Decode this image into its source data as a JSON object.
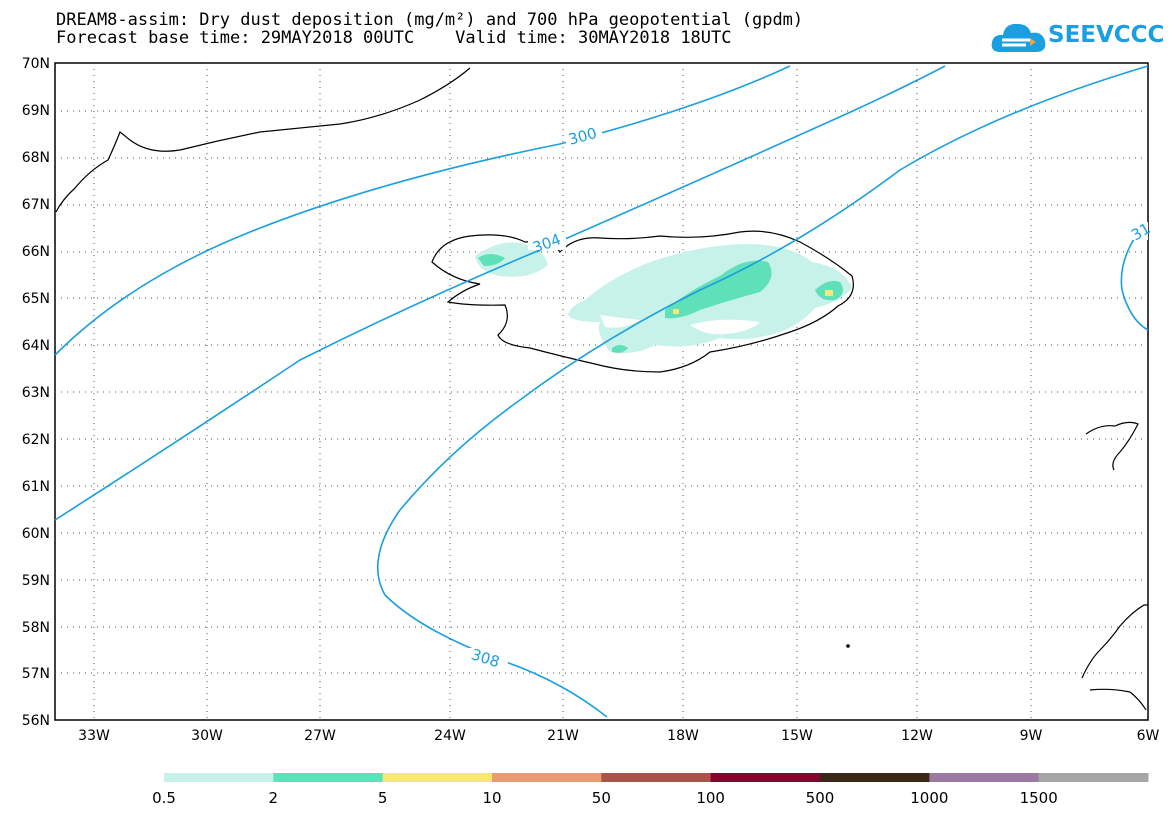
{
  "header": {
    "title_line1": "DREAM8-assim: Dry dust deposition (mg/m²) and 700 hPa geopotential (gpdm)",
    "title_line2": "Forecast base time: 29MAY2018 00UTC    Valid time: 30MAY2018 18UTC"
  },
  "logo": {
    "text": "SEEVCCC",
    "icon": "cloud-icon",
    "color": "#1a9fe0"
  },
  "map": {
    "lat_labels": [
      "70N",
      "69N",
      "68N",
      "67N",
      "66N",
      "65N",
      "64N",
      "63N",
      "62N",
      "61N",
      "60N",
      "59N",
      "58N",
      "57N",
      "56N"
    ],
    "lon_labels": [
      "33W",
      "30W",
      "27W",
      "24W",
      "21W",
      "18W",
      "15W",
      "12W",
      "9W",
      "6W"
    ],
    "contour_color": "#1a9fe0",
    "contour_labels": [
      {
        "text": "300"
      },
      {
        "text": "304"
      },
      {
        "text": "308"
      },
      {
        "text": "31"
      }
    ]
  },
  "colorbar": {
    "labels": [
      "0.5",
      "2",
      "5",
      "10",
      "50",
      "100",
      "500",
      "1000",
      "1500"
    ],
    "colors": [
      "#c7f2ea",
      "#5ee0b8",
      "#f7e77a",
      "#eb9b73",
      "#a8544a",
      "#80082e",
      "#3b2718",
      "#9b79a2",
      "#a6a6a6"
    ]
  }
}
